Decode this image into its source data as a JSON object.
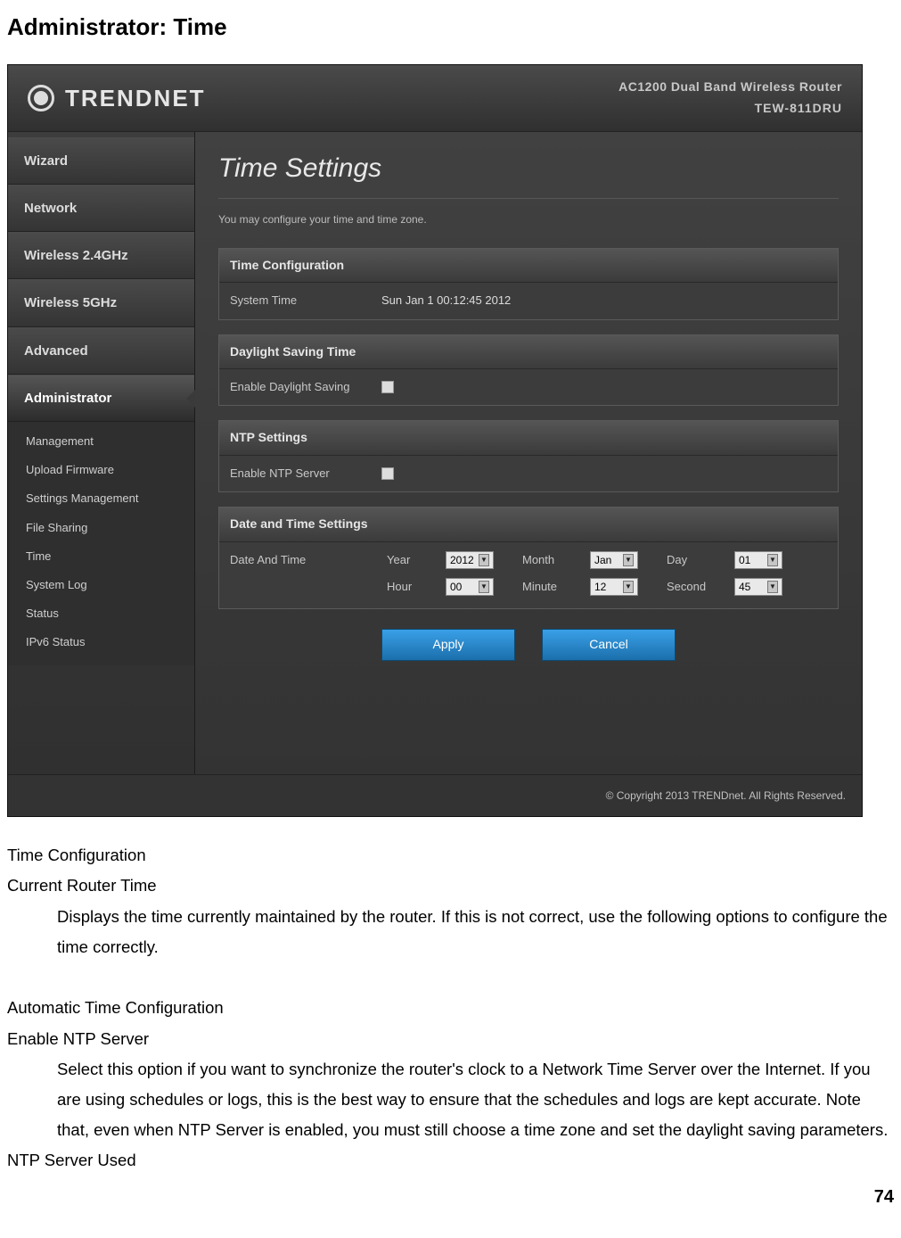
{
  "page_heading": "Administrator: Time",
  "page_number": "74",
  "product": {
    "name": "AC1200 Dual Band Wireless Router",
    "model": "TEW-811DRU"
  },
  "logo_text": "TRENDNET",
  "sidebar": {
    "items": [
      {
        "label": "Wizard"
      },
      {
        "label": "Network"
      },
      {
        "label": "Wireless 2.4GHz"
      },
      {
        "label": "Wireless 5GHz"
      },
      {
        "label": "Advanced"
      },
      {
        "label": "Administrator",
        "active": true
      }
    ],
    "sub_items": [
      {
        "label": "Management"
      },
      {
        "label": "Upload Firmware"
      },
      {
        "label": "Settings Management"
      },
      {
        "label": "File Sharing"
      },
      {
        "label": "Time"
      },
      {
        "label": "System Log"
      },
      {
        "label": "Status"
      },
      {
        "label": "IPv6 Status"
      }
    ]
  },
  "panel": {
    "title": "Time Settings",
    "subtitle": "You may configure your time and time zone."
  },
  "time_config": {
    "header": "Time Configuration",
    "label": "System Time",
    "value": "Sun Jan 1 00:12:45 2012"
  },
  "dst": {
    "header": "Daylight Saving Time",
    "label": "Enable Daylight Saving"
  },
  "ntp": {
    "header": "NTP Settings",
    "label": "Enable NTP Server"
  },
  "datetime": {
    "header": "Date and Time Settings",
    "row_label": "Date And Time",
    "labels": {
      "year": "Year",
      "month": "Month",
      "day": "Day",
      "hour": "Hour",
      "minute": "Minute",
      "second": "Second"
    },
    "values": {
      "year": "2012",
      "month": "Jan",
      "day": "01",
      "hour": "00",
      "minute": "12",
      "second": "45"
    }
  },
  "buttons": {
    "apply": "Apply",
    "cancel": "Cancel"
  },
  "copyright": "© Copyright 2013 TRENDnet. All Rights Reserved.",
  "doc": {
    "s1_h1": "Time Configuration",
    "s1_h2": "Current Router Time",
    "s1_p": "Displays the time currently maintained by the router. If this is not correct, use the following options to configure the time correctly.",
    "s2_h1": "Automatic Time Configuration",
    "s2_h2": "Enable NTP Server",
    "s2_p": "Select this option if you want to synchronize the router's clock to a Network Time Server over the Internet. If you are using schedules or logs, this is the best way to ensure that the schedules and logs are kept accurate. Note that, even when NTP Server is enabled, you must still choose a time zone and set the daylight saving parameters.",
    "s2_h3": "NTP Server Used"
  },
  "colors": {
    "accent": "#2a8bd0",
    "panel_bg": "#3a3a3a",
    "text_light": "#dcdcdc"
  }
}
